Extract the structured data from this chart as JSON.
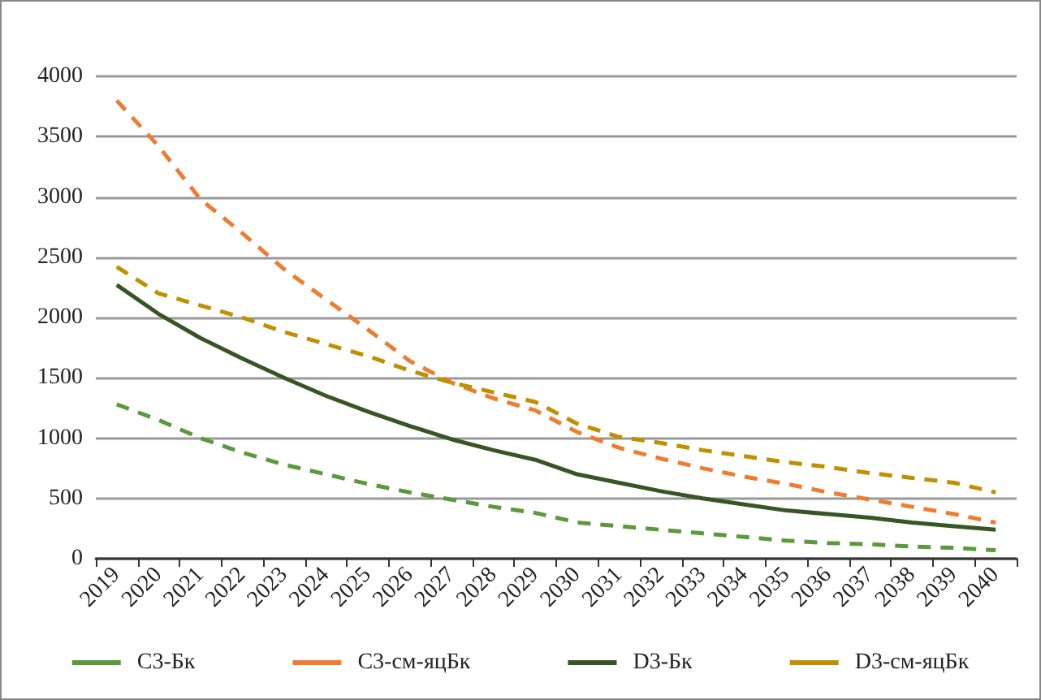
{
  "chart_data": {
    "type": "line",
    "categories": [
      "2019",
      "2020",
      "2021",
      "2022",
      "2023",
      "2024",
      "2025",
      "2026",
      "2027",
      "2028",
      "2029",
      "2030",
      "2031",
      "2032",
      "2033",
      "2034",
      "2035",
      "2036",
      "2037",
      "2038",
      "2039",
      "2040"
    ],
    "series": [
      {
        "name": "C3-Бк",
        "color": "#5b9a3c",
        "line_style": "dashed",
        "values": [
          1280,
          1150,
          1000,
          880,
          780,
          700,
          620,
          550,
          490,
          430,
          380,
          300,
          270,
          240,
          210,
          180,
          150,
          130,
          120,
          100,
          90,
          70
        ]
      },
      {
        "name": "C3-см-яцБк",
        "color": "#ed7d31",
        "line_style": "dashed",
        "values": [
          3800,
          3420,
          2980,
          2700,
          2400,
          2150,
          1900,
          1640,
          1460,
          1330,
          1230,
          1050,
          920,
          830,
          750,
          680,
          620,
          550,
          490,
          430,
          370,
          300
        ]
      },
      {
        "name": "D3-Бк",
        "color": "#375623",
        "line_style": "solid",
        "values": [
          2270,
          2030,
          1830,
          1660,
          1500,
          1350,
          1220,
          1100,
          990,
          900,
          820,
          700,
          630,
          560,
          500,
          450,
          400,
          370,
          340,
          300,
          270,
          240
        ]
      },
      {
        "name": "D3-см-яцБк",
        "color": "#bf9000",
        "line_style": "dashed",
        "values": [
          2420,
          2200,
          2100,
          2000,
          1880,
          1780,
          1680,
          1560,
          1460,
          1380,
          1300,
          1120,
          1010,
          960,
          900,
          850,
          800,
          760,
          710,
          670,
          630,
          550
        ]
      }
    ],
    "ylim": [
      0,
      4000
    ],
    "yticks": [
      0,
      500,
      1000,
      1500,
      2000,
      2500,
      3000,
      3500,
      4000
    ],
    "grid": "y",
    "legend": "bottom",
    "marker": "none"
  }
}
